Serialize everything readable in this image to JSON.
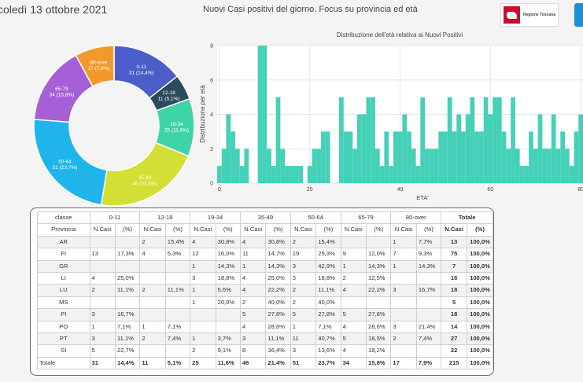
{
  "header": {
    "date": "coledì 13 ottobre 2021",
    "subtitle": "Nuovi Casi positivi del giorno. Focus su provincia ed età",
    "logo_text": "Regione Toscana"
  },
  "chart_data": [
    {
      "type": "pie",
      "variant": "donut",
      "slices": [
        {
          "label": "0-11",
          "value": 31,
          "value_label": "31 (14,4%)",
          "color": "#4a5dc9"
        },
        {
          "label": "12-18",
          "value": 11,
          "value_label": "11 (5,1%)",
          "color": "#2b4a5c"
        },
        {
          "label": "19-34",
          "value": 25,
          "value_label": "25 (11,6%)",
          "color": "#3fd4a6"
        },
        {
          "label": "35-49",
          "value": 46,
          "value_label": "46 (21,4%)",
          "color": "#d4df35"
        },
        {
          "label": "50-64",
          "value": 51,
          "value_label": "51 (23,7%)",
          "color": "#1fb5ea"
        },
        {
          "label": "65-79",
          "value": 34,
          "value_label": "34 (15,8%)",
          "color": "#a75fd6"
        },
        {
          "label": "80-over",
          "value": 17,
          "value_label": "17 (7,9%)",
          "color": "#f19a2b"
        }
      ]
    },
    {
      "type": "bar",
      "title": "Distribuzione dell'età relativa ai Nuovi Positivi",
      "xlabel": "ETA'",
      "ylabel": "Distribuzione per età",
      "color": "#45d0b8",
      "x_ticks": [
        0,
        20,
        40,
        60,
        80
      ],
      "y_ticks": [
        0,
        2,
        4,
        6,
        8
      ],
      "xlim": [
        -0.5,
        80.5
      ],
      "ylim": [
        0,
        8
      ],
      "x": [
        0,
        1,
        2,
        3,
        4,
        5,
        6,
        7,
        8,
        9,
        10,
        11,
        12,
        13,
        14,
        15,
        16,
        17,
        18,
        19,
        20,
        21,
        22,
        23,
        24,
        25,
        26,
        27,
        28,
        29,
        30,
        31,
        32,
        33,
        34,
        35,
        36,
        37,
        38,
        39,
        40,
        41,
        42,
        43,
        44,
        45,
        46,
        47,
        48,
        49,
        50,
        51,
        52,
        53,
        54,
        55,
        56,
        57,
        58,
        59,
        60,
        61,
        62,
        63,
        64,
        65,
        66,
        67,
        68,
        69,
        70,
        71,
        72,
        73,
        74,
        75,
        76,
        77,
        78,
        79,
        80
      ],
      "values": [
        1,
        2,
        4,
        3,
        2,
        1,
        2,
        0,
        0,
        8,
        8,
        2,
        1,
        5,
        2,
        1,
        1,
        1,
        1,
        0,
        1,
        2,
        2,
        3,
        3,
        0,
        0,
        5,
        3,
        3,
        2,
        4,
        4,
        5,
        5,
        2,
        1,
        3,
        1,
        3,
        3,
        4,
        3,
        2,
        1,
        5,
        2,
        2,
        2,
        3,
        3,
        5,
        3,
        4,
        3,
        4,
        5,
        3,
        3,
        5,
        4,
        5,
        5,
        3,
        2,
        5,
        2,
        1,
        1,
        3,
        2,
        4,
        2,
        2,
        4,
        2,
        3,
        2,
        1,
        3,
        4
      ]
    }
  ],
  "table": {
    "group_header_label": "classe",
    "groups": [
      "0-11",
      "12-18",
      "19-34",
      "35-49",
      "50-64",
      "65-79",
      "80-over"
    ],
    "total_label": "Totale",
    "prov_header": "Provincia",
    "n_label": "N.Casi",
    "p_label": "(%)",
    "rows": [
      {
        "prov": "AR",
        "cells": [
          "",
          "",
          "2",
          "15,4%",
          "4",
          "30,8%",
          "4",
          "30,8%",
          "2",
          "15,4%",
          "",
          "",
          "1",
          "7,7%"
        ],
        "tot_n": "13",
        "tot_p": "100,0%"
      },
      {
        "prov": "FI",
        "cells": [
          "13",
          "17,3%",
          "4",
          "5,3%",
          "12",
          "16,0%",
          "11",
          "14,7%",
          "19",
          "25,3%",
          "9",
          "12,0%",
          "7",
          "9,3%"
        ],
        "tot_n": "75",
        "tot_p": "100,0%"
      },
      {
        "prov": "GR",
        "cells": [
          "",
          "",
          "",
          "",
          "1",
          "14,3%",
          "1",
          "14,3%",
          "3",
          "42,9%",
          "1",
          "14,3%",
          "1",
          "14,3%"
        ],
        "tot_n": "7",
        "tot_p": "100,0%"
      },
      {
        "prov": "LI",
        "cells": [
          "4",
          "25,0%",
          "",
          "",
          "3",
          "18,8%",
          "4",
          "25,0%",
          "3",
          "18,8%",
          "2",
          "12,5%",
          "",
          ""
        ],
        "tot_n": "16",
        "tot_p": "100,0%"
      },
      {
        "prov": "LU",
        "cells": [
          "2",
          "11,1%",
          "2",
          "11,1%",
          "1",
          "5,6%",
          "4",
          "22,2%",
          "2",
          "11,1%",
          "4",
          "22,2%",
          "3",
          "16,7%"
        ],
        "tot_n": "18",
        "tot_p": "100,0%"
      },
      {
        "prov": "MS",
        "cells": [
          "",
          "",
          "",
          "",
          "1",
          "20,0%",
          "2",
          "40,0%",
          "2",
          "40,0%",
          "",
          "",
          "",
          ""
        ],
        "tot_n": "5",
        "tot_p": "100,0%"
      },
      {
        "prov": "PI",
        "cells": [
          "3",
          "16,7%",
          "",
          "",
          "",
          "",
          "5",
          "27,8%",
          "5",
          "27,8%",
          "5",
          "27,8%",
          "",
          ""
        ],
        "tot_n": "18",
        "tot_p": "100,0%"
      },
      {
        "prov": "PO",
        "cells": [
          "1",
          "7,1%",
          "1",
          "7,1%",
          "",
          "",
          "4",
          "28,6%",
          "1",
          "7,1%",
          "4",
          "28,6%",
          "3",
          "21,4%"
        ],
        "tot_n": "14",
        "tot_p": "100,0%"
      },
      {
        "prov": "PT",
        "cells": [
          "3",
          "11,1%",
          "2",
          "7,4%",
          "1",
          "3,7%",
          "3",
          "11,1%",
          "11",
          "40,7%",
          "5",
          "18,5%",
          "2",
          "7,4%"
        ],
        "tot_n": "27",
        "tot_p": "100,0%"
      },
      {
        "prov": "SI",
        "cells": [
          "5",
          "22,7%",
          "",
          "",
          "2",
          "9,1%",
          "8",
          "36,4%",
          "3",
          "13,6%",
          "4",
          "18,2%",
          "",
          ""
        ],
        "tot_n": "22",
        "tot_p": "100,0%"
      }
    ],
    "total_row": {
      "prov": "Totale",
      "cells": [
        "31",
        "14,4%",
        "11",
        "5,1%",
        "25",
        "11,6%",
        "46",
        "21,4%",
        "51",
        "23,7%",
        "34",
        "15,8%",
        "17",
        "7,9%"
      ],
      "tot_n": "215",
      "tot_p": "100,0%"
    }
  }
}
